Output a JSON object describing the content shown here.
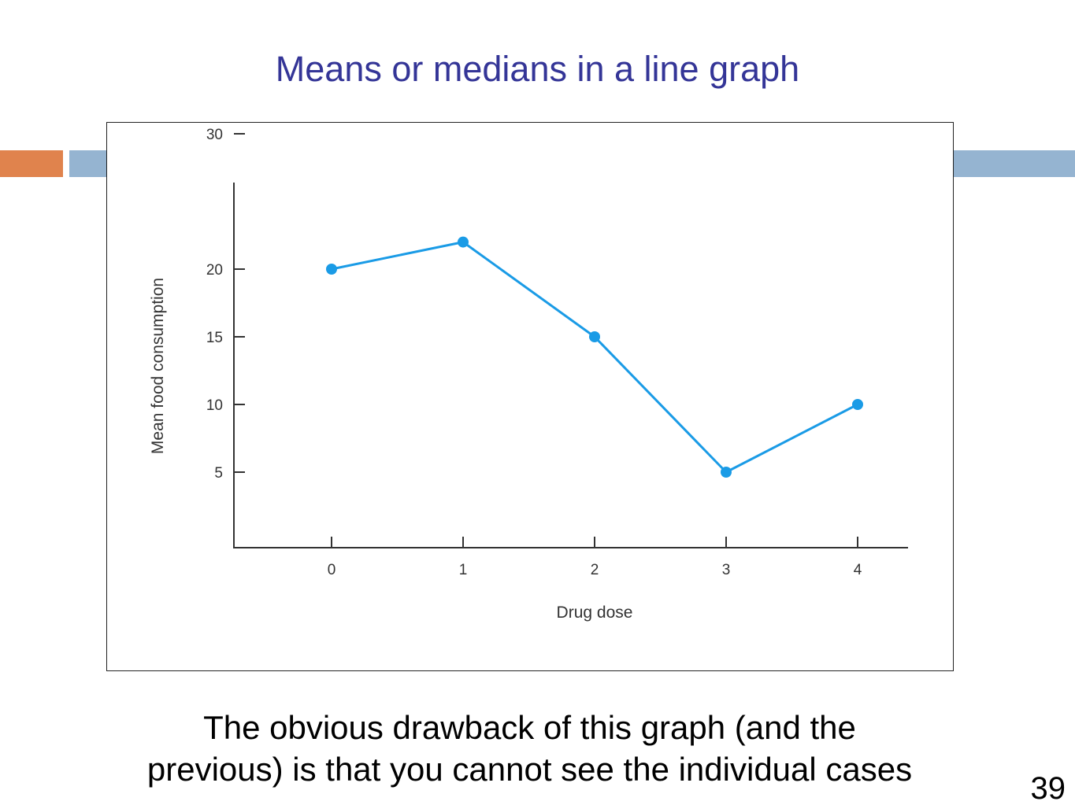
{
  "slide": {
    "title": "Means or medians in a line graph",
    "caption_line1": "The obvious drawback of this graph (and the",
    "caption_line2": "previous) is that you cannot see the individual cases",
    "page_number": "39"
  },
  "colors": {
    "title": "#343597",
    "accent_orange": "#e0834d",
    "accent_blue": "#95b4d1",
    "series_line": "#1a9be6",
    "axis": "#333333"
  },
  "chart_data": {
    "type": "line",
    "xlabel": "Drug dose",
    "ylabel": "Mean food consumption",
    "x": [
      0,
      1,
      2,
      3,
      4
    ],
    "x_tick_labels": [
      "0",
      "1",
      "2",
      "3",
      "4"
    ],
    "y_ticks": [
      5,
      10,
      15,
      20,
      30
    ],
    "y_tick_labels": [
      "5",
      "10",
      "15",
      "20",
      "30"
    ],
    "series": [
      {
        "values": [
          20,
          22,
          15,
          5,
          10
        ]
      }
    ],
    "grid": false,
    "legend": "none"
  }
}
